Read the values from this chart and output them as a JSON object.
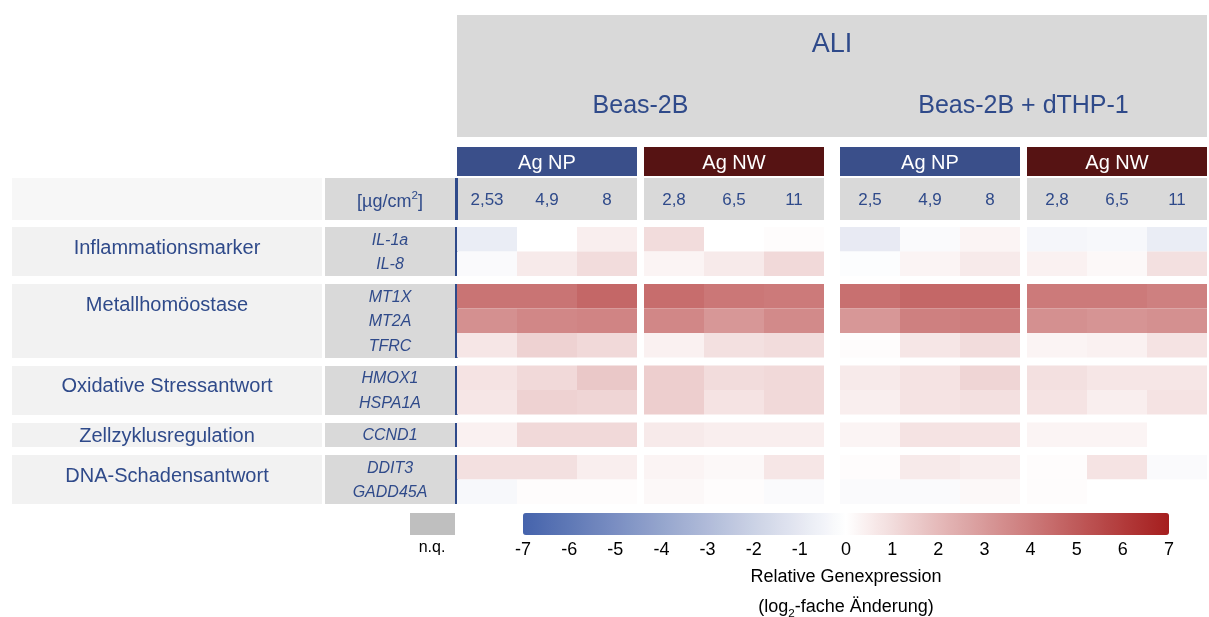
{
  "chart_data": {
    "type": "heatmap",
    "title": "ALI",
    "xlabel": "[µg/cm$^{2}$]",
    "clabel": "Relative Genexpression\n(log$_{2}$-fache Änderung)",
    "annotations": [
      "Beas-2B",
      "Beas-2B + dTHP-1",
      "Ag NP",
      "Ag NW",
      "Ag NP",
      "Ag NW",
      "n.q."
    ],
    "categories": [
      "2,53",
      "4,9",
      "8",
      "2,8",
      "6,5",
      "11",
      "2,5",
      "4,9",
      "8",
      "2,8",
      "6,5",
      "11"
    ],
    "y_categories": [
      "IL-1a",
      "IL-8",
      "MT1X",
      "MT2A",
      "TFRC",
      "HMOX1",
      "HSPA1A",
      "CCND1",
      "DDIT3",
      "GADD45A"
    ],
    "y2_categories": [
      "Inflammationsmarker",
      null,
      "Metallhomöostase",
      null,
      null,
      "Oxidative Stressantwort",
      null,
      "Zellzyklusregulation",
      "DNA-Schadensantwort",
      null
    ],
    "cells": [
      [
        -0.8,
        0,
        0.5,
        1,
        0,
        0.1,
        -0.9,
        -0.2,
        0.3,
        -0.4,
        -0.3,
        -0.8
      ],
      [
        -0.2,
        0.6,
        1.0,
        0.3,
        0.6,
        1.1,
        -0.1,
        0.3,
        0.6,
        0.4,
        0.2,
        0.9
      ],
      [
        4.2,
        4.2,
        4.6,
        4.4,
        4.1,
        4.0,
        4.3,
        4.6,
        4.6,
        4.0,
        4.0,
        3.8
      ],
      [
        3.3,
        3.6,
        3.7,
        3.6,
        3.1,
        3.5,
        3.1,
        3.8,
        3.9,
        3.3,
        3.2,
        3.3
      ],
      [
        0.7,
        1.3,
        1.1,
        0.4,
        0.9,
        1.0,
        0.1,
        0.7,
        1.0,
        0.3,
        0.4,
        0.8
      ],
      [
        0.8,
        1.1,
        1.6,
        1.4,
        1.0,
        1.1,
        0.6,
        0.8,
        1.2,
        0.9,
        0.7,
        0.7
      ],
      [
        0.7,
        1.3,
        1.2,
        1.4,
        0.8,
        1.1,
        0.5,
        0.8,
        0.9,
        0.8,
        0.5,
        0.8
      ],
      [
        0.4,
        1.1,
        1.1,
        0.6,
        0.5,
        0.5,
        0.3,
        0.8,
        0.8,
        0.3,
        0.3,
        0
      ],
      [
        0.9,
        0.9,
        0.5,
        0.3,
        0.2,
        0.7,
        0.1,
        0.6,
        0.5,
        0.1,
        0.8,
        -0.2
      ],
      [
        -0.3,
        0.1,
        0.1,
        0.2,
        0.1,
        -0.2,
        -0.2,
        -0.2,
        0.2,
        0.1,
        0,
        0
      ]
    ],
    "clim": [
      -7,
      7
    ],
    "cticks": [
      -7,
      -6,
      -5,
      -4,
      -3,
      -2,
      -1,
      0,
      1,
      2,
      3,
      4,
      5,
      6,
      7
    ]
  }
}
